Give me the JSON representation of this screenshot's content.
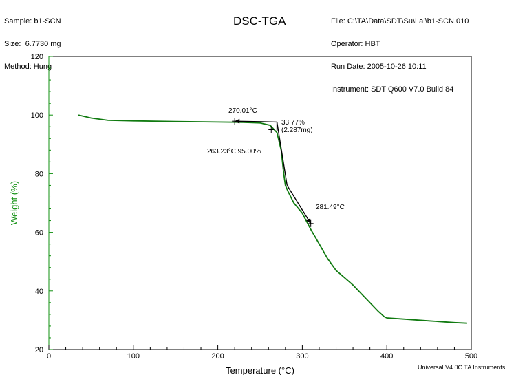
{
  "header": {
    "sample": "Sample: b1-SCN",
    "size": "Size:  6.7730 mg",
    "method": "Method: Hung",
    "title": "DSC-TGA",
    "file": "File: C:\\TA\\Data\\SDT\\Su\\Lai\\b1-SCN.010",
    "operator": "Operator: HBT",
    "run_date": "Run Date: 2005-10-26 10:11",
    "instrument": "Instrument: SDT Q600 V7.0 Build 84"
  },
  "footer": "Universal V4.0C TA Instruments",
  "colors": {
    "curve": "#107a10",
    "ylabel": "#109010",
    "y_axis": "#109010",
    "axis": "#000000",
    "annotation": "#000000"
  },
  "chart_data": {
    "type": "line",
    "title": "DSC-TGA",
    "xlabel": "Temperature (°C)",
    "ylabel": "Weight (%)",
    "xlim": [
      0,
      500
    ],
    "ylim": [
      20,
      120
    ],
    "x_ticks": [
      "0",
      "100",
      "200",
      "300",
      "400",
      "500"
    ],
    "y_ticks": [
      "20",
      "40",
      "60",
      "80",
      "100",
      "120"
    ],
    "grid": false,
    "series": [
      {
        "x": [
          35,
          50,
          70,
          100,
          150,
          200,
          230,
          250,
          262,
          270,
          275,
          278,
          280,
          283,
          290,
          300,
          310,
          320,
          330,
          340,
          350,
          360,
          370,
          380,
          390,
          397,
          400,
          420,
          450,
          480,
          495
        ],
        "y": [
          100,
          99,
          98.2,
          98,
          97.8,
          97.6,
          97.5,
          97.3,
          96.5,
          94,
          88,
          80,
          76,
          74,
          70,
          66.5,
          61,
          56,
          51,
          47,
          44.5,
          42,
          39,
          36,
          33,
          31.2,
          30.8,
          30.4,
          29.8,
          29.2,
          29
        ]
      }
    ],
    "annotations": {
      "onset_temp": "270.01°C",
      "weight_loss": "33.77%",
      "weight_loss_mass": "(2.287mg)",
      "point_95": "263.23°C 95.00%",
      "end_temp": "281.49°C"
    }
  }
}
